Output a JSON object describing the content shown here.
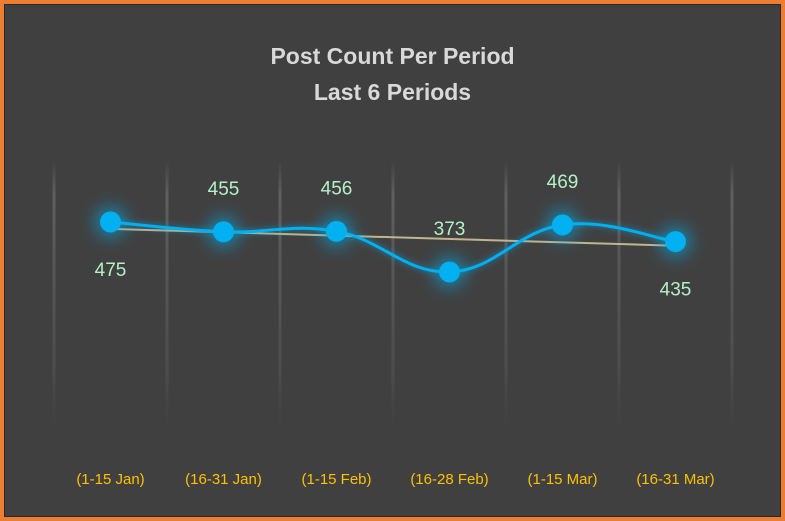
{
  "chart_data": {
    "type": "line",
    "title": "Post Count Per Period",
    "subtitle": "Last 6 Periods",
    "categories": [
      "(1-15 Jan)",
      "(16-31 Jan)",
      "(1-15 Feb)",
      "(16-28 Feb)",
      "(1-15 Mar)",
      "(16-31 Mar)"
    ],
    "series": [
      {
        "name": "Post Count",
        "values": [
          475,
          455,
          456,
          373,
          469,
          435
        ]
      }
    ],
    "trendline": {
      "type": "linear"
    },
    "xlabel": "",
    "ylabel": "",
    "ylim": [
      0,
      600
    ],
    "grid": false,
    "legend": "none",
    "data_labels": true,
    "colors": {
      "background": "#404040",
      "border": "#ed7d31",
      "line": "#00b0f0",
      "marker": "#00b0f0",
      "trendline": "#bfb58e",
      "data_label": "#b4f0c6",
      "category_label": "#ffc000",
      "title": "#d9d9d9"
    }
  }
}
